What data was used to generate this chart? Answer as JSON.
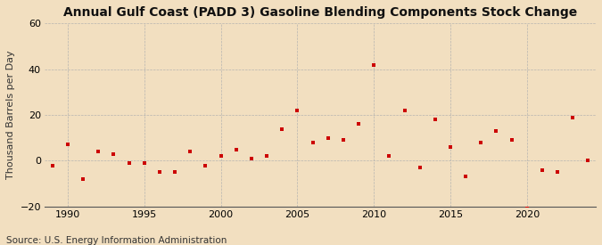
{
  "title": "Annual Gulf Coast (PADD 3) Gasoline Blending Components Stock Change",
  "ylabel": "Thousand Barrels per Day",
  "source": "Source: U.S. Energy Information Administration",
  "background_color": "#f2dfc0",
  "plot_background_color": "#f2dfc0",
  "marker_color": "#cc0000",
  "marker": "s",
  "marker_size": 3.5,
  "ylim": [
    -20,
    60
  ],
  "yticks": [
    -20,
    0,
    20,
    40,
    60
  ],
  "xlim": [
    1988.5,
    2024.5
  ],
  "xticks": [
    1990,
    1995,
    2000,
    2005,
    2010,
    2015,
    2020
  ],
  "years": [
    1989,
    1990,
    1991,
    1992,
    1993,
    1994,
    1995,
    1996,
    1997,
    1998,
    1999,
    2000,
    2001,
    2002,
    2003,
    2004,
    2005,
    2006,
    2007,
    2008,
    2009,
    2010,
    2011,
    2012,
    2013,
    2014,
    2015,
    2016,
    2017,
    2018,
    2019,
    2020,
    2021,
    2022,
    2023,
    2024
  ],
  "values": [
    -2,
    7,
    -8,
    4,
    3,
    -1,
    -1,
    -5,
    -5,
    4,
    -2,
    2,
    5,
    1,
    2,
    14,
    22,
    8,
    10,
    9,
    16,
    42,
    2,
    22,
    -3,
    18,
    6,
    -7,
    8,
    13,
    9,
    -21,
    -4,
    -5,
    19,
    0
  ],
  "grid_color": "#b0b0b0",
  "title_fontsize": 10,
  "label_fontsize": 8,
  "tick_fontsize": 8,
  "source_fontsize": 7.5
}
